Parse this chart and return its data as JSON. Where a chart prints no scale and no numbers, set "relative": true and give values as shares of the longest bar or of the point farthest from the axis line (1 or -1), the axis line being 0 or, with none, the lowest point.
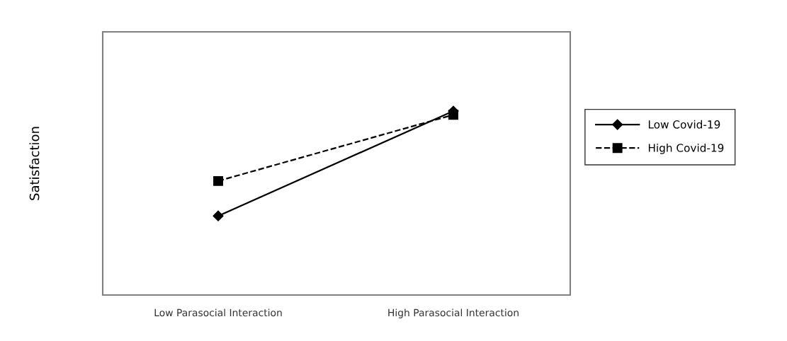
{
  "chart_data": {
    "type": "line",
    "ylabel": "Satisfaction",
    "relative": true,
    "categories": [
      "Low Parasocial Interaction",
      "High Parasocial Interaction"
    ],
    "series": [
      {
        "name": "Low Covid-19",
        "color": "#000000",
        "values": [
          0.43,
          1.0
        ],
        "marker": "diamond",
        "line_style": "solid"
      },
      {
        "name": "High Covid-19",
        "color": "#000000",
        "values": [
          0.62,
          0.98
        ],
        "marker": "square",
        "line_style": "dashed"
      }
    ],
    "legend": "right",
    "grid": false
  }
}
